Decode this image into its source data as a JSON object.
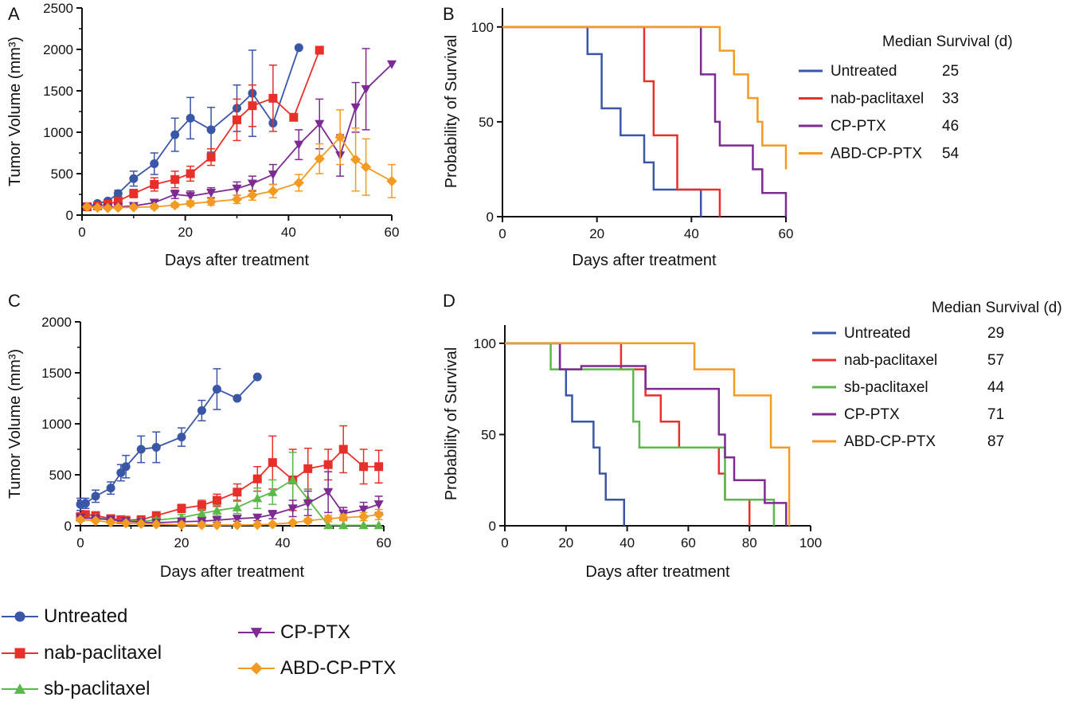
{
  "colors": {
    "untreated": "#3a56a7",
    "nab": "#e8302a",
    "sb": "#5bb94a",
    "cp": "#7d2a92",
    "abd": "#f39a23"
  },
  "legend": {
    "items": [
      {
        "key": "untreated",
        "label": "Untreated",
        "marker": "circle"
      },
      {
        "key": "nab",
        "label": "nab-paclitaxel",
        "marker": "square"
      },
      {
        "key": "sb",
        "label": "sb-paclitaxel",
        "marker": "triangle-up"
      },
      {
        "key": "cp",
        "label": "CP-PTX",
        "marker": "triangle-down"
      },
      {
        "key": "abd",
        "label": "ABD-CP-PTX",
        "marker": "diamond"
      }
    ]
  },
  "chart_data": [
    {
      "panel": "A",
      "type": "line",
      "xlabel": "Days after treatment",
      "ylabel": "Tumor Volume (mm³)",
      "xlim": [
        0,
        60
      ],
      "ylim": [
        0,
        2500
      ],
      "xticks": [
        0,
        20,
        40,
        60
      ],
      "yticks": [
        0,
        500,
        1000,
        1500,
        2000,
        2500
      ],
      "series": [
        {
          "key": "untreated",
          "name": "Untreated",
          "marker": "circle",
          "x": [
            1,
            3,
            5,
            7,
            10,
            14,
            18,
            21,
            25,
            30,
            33,
            37,
            42
          ],
          "y": [
            100,
            140,
            170,
            260,
            440,
            620,
            970,
            1170,
            1030,
            1290,
            1470,
            1110,
            2020
          ],
          "err": [
            0,
            20,
            20,
            40,
            90,
            130,
            200,
            250,
            270,
            280,
            520,
            0,
            0
          ]
        },
        {
          "key": "nab",
          "name": "nab-paclitaxel",
          "marker": "square",
          "x": [
            1,
            3,
            5,
            7,
            10,
            14,
            18,
            21,
            25,
            30,
            33,
            37,
            41,
            46
          ],
          "y": [
            100,
            110,
            130,
            170,
            260,
            370,
            430,
            500,
            700,
            1150,
            1320,
            1410,
            1180,
            1990
          ],
          "err": [
            0,
            15,
            20,
            30,
            50,
            80,
            100,
            90,
            100,
            250,
            250,
            400,
            0,
            0
          ]
        },
        {
          "key": "cp",
          "name": "CP-PTX",
          "marker": "triangle-down",
          "x": [
            1,
            3,
            5,
            7,
            10,
            14,
            18,
            21,
            25,
            30,
            33,
            37,
            42,
            46,
            50,
            53,
            55,
            60
          ],
          "y": [
            100,
            90,
            95,
            100,
            110,
            150,
            250,
            230,
            270,
            320,
            380,
            490,
            850,
            1100,
            720,
            1300,
            1520,
            1820
          ],
          "err": [
            0,
            10,
            10,
            15,
            20,
            30,
            50,
            60,
            60,
            80,
            90,
            120,
            180,
            300,
            250,
            300,
            490,
            0
          ]
        },
        {
          "key": "abd",
          "name": "ABD-CP-PTX",
          "marker": "diamond",
          "x": [
            1,
            3,
            5,
            7,
            10,
            14,
            18,
            21,
            25,
            30,
            33,
            37,
            42,
            46,
            50,
            53,
            55,
            60
          ],
          "y": [
            100,
            90,
            85,
            90,
            95,
            100,
            120,
            140,
            160,
            190,
            240,
            290,
            390,
            680,
            940,
            670,
            580,
            410
          ],
          "err": [
            0,
            10,
            10,
            10,
            15,
            20,
            25,
            30,
            40,
            50,
            60,
            80,
            100,
            180,
            330,
            380,
            340,
            200
          ]
        }
      ]
    },
    {
      "panel": "B",
      "type": "line",
      "xlabel": "Days after treatment",
      "ylabel": "Probability of Survival",
      "xlim": [
        0,
        60
      ],
      "ylim": [
        0,
        100
      ],
      "xticks": [
        0,
        20,
        40,
        60
      ],
      "yticks": [
        0,
        50,
        100
      ],
      "legend_title": "Median Survival (d)",
      "series": [
        {
          "key": "untreated",
          "name": "Untreated",
          "median": "25",
          "x": [
            0,
            18,
            21,
            25,
            30,
            32,
            42
          ],
          "y": [
            100,
            85.7,
            57.1,
            42.9,
            28.6,
            14.3,
            0
          ]
        },
        {
          "key": "nab",
          "name": "nab-paclitaxel",
          "median": "33",
          "x": [
            0,
            30,
            32,
            34,
            37,
            46
          ],
          "y": [
            100,
            71.4,
            42.9,
            42.9,
            14.3,
            0
          ]
        },
        {
          "key": "cp",
          "name": "CP-PTX",
          "median": "46",
          "x": [
            0,
            42,
            45,
            46,
            53,
            55,
            60
          ],
          "y": [
            100,
            75,
            50,
            37.5,
            25,
            12.5,
            0
          ]
        },
        {
          "key": "abd",
          "name": "ABD-CP-PTX",
          "median": "54",
          "x": [
            0,
            46,
            49,
            52,
            54,
            55,
            60
          ],
          "y": [
            100,
            87.5,
            75,
            62.5,
            50,
            37.5,
            25
          ]
        }
      ]
    },
    {
      "panel": "C",
      "type": "line",
      "xlabel": "Days after treatment",
      "ylabel": "Tumor Volume (mm³)",
      "xlim": [
        0,
        60
      ],
      "ylim": [
        0,
        2000
      ],
      "xticks": [
        0,
        20,
        40,
        60
      ],
      "yticks": [
        0,
        500,
        1000,
        1500,
        2000
      ],
      "series": [
        {
          "key": "untreated",
          "name": "Untreated",
          "marker": "circle",
          "x": [
            0,
            1,
            3,
            6,
            8,
            9,
            12,
            15,
            20,
            24,
            27,
            31,
            35
          ],
          "y": [
            210,
            220,
            290,
            370,
            520,
            580,
            750,
            770,
            870,
            1130,
            1340,
            1250,
            1460
          ],
          "err": [
            60,
            50,
            60,
            60,
            80,
            110,
            130,
            150,
            90,
            100,
            200,
            0,
            0
          ]
        },
        {
          "key": "nab",
          "name": "nab-paclitaxel",
          "marker": "square",
          "x": [
            0,
            1,
            3,
            6,
            8,
            9,
            12,
            15,
            20,
            24,
            27,
            31,
            35,
            38,
            42,
            45,
            49,
            52,
            56,
            59
          ],
          "y": [
            90,
            110,
            100,
            70,
            60,
            55,
            60,
            100,
            170,
            200,
            250,
            330,
            460,
            620,
            450,
            560,
            600,
            750,
            580,
            580
          ],
          "err": [
            30,
            30,
            30,
            20,
            20,
            20,
            20,
            30,
            40,
            50,
            60,
            80,
            120,
            260,
            300,
            200,
            150,
            230,
            170,
            160
          ]
        },
        {
          "key": "sb",
          "name": "sb-paclitaxel",
          "marker": "triangle-up",
          "x": [
            0,
            3,
            6,
            9,
            12,
            15,
            20,
            24,
            27,
            31,
            35,
            38,
            42,
            45,
            49,
            52,
            56,
            59
          ],
          "y": [
            80,
            80,
            60,
            50,
            45,
            55,
            80,
            120,
            150,
            180,
            270,
            330,
            450,
            260,
            5,
            5,
            5,
            5
          ],
          "err": [
            20,
            20,
            15,
            15,
            15,
            20,
            30,
            40,
            50,
            60,
            100,
            120,
            270,
            100,
            0,
            0,
            0,
            0
          ]
        },
        {
          "key": "cp",
          "name": "CP-PTX",
          "marker": "triangle-down",
          "x": [
            0,
            3,
            6,
            9,
            12,
            15,
            20,
            24,
            27,
            31,
            35,
            38,
            42,
            45,
            49,
            52,
            56,
            59
          ],
          "y": [
            80,
            70,
            60,
            45,
            35,
            30,
            40,
            45,
            55,
            70,
            80,
            110,
            170,
            220,
            330,
            120,
            160,
            210
          ],
          "err": [
            20,
            15,
            15,
            10,
            10,
            10,
            15,
            15,
            20,
            25,
            30,
            40,
            80,
            120,
            200,
            60,
            70,
            80
          ]
        },
        {
          "key": "abd",
          "name": "ABD-CP-PTX",
          "marker": "diamond",
          "x": [
            0,
            3,
            6,
            9,
            12,
            15,
            20,
            24,
            27,
            31,
            35,
            38,
            42,
            45,
            49,
            52,
            56,
            59
          ],
          "y": [
            60,
            50,
            35,
            25,
            20,
            15,
            10,
            8,
            8,
            8,
            10,
            15,
            30,
            50,
            70,
            80,
            90,
            110
          ],
          "err": [
            10,
            10,
            8,
            5,
            5,
            5,
            3,
            3,
            3,
            3,
            5,
            5,
            10,
            20,
            30,
            30,
            40,
            50
          ]
        }
      ]
    },
    {
      "panel": "D",
      "type": "line",
      "xlabel": "Days after treatment",
      "ylabel": "Probability of Survival",
      "xlim": [
        0,
        100
      ],
      "ylim": [
        0,
        100
      ],
      "xticks": [
        0,
        20,
        40,
        60,
        80,
        100
      ],
      "yticks": [
        0,
        50,
        100
      ],
      "legend_title": "Median Survival (d)",
      "series": [
        {
          "key": "untreated",
          "name": "Untreated",
          "median": "29",
          "x": [
            0,
            18,
            20,
            22,
            29,
            31,
            33,
            39
          ],
          "y": [
            100,
            85.7,
            71.4,
            57.1,
            42.9,
            28.6,
            14.3,
            0
          ]
        },
        {
          "key": "nab",
          "name": "nab-paclitaxel",
          "median": "57",
          "x": [
            0,
            38,
            46,
            51,
            57,
            70,
            72,
            80
          ],
          "y": [
            100,
            85.7,
            71.4,
            57.1,
            42.9,
            28.6,
            14.3,
            0
          ]
        },
        {
          "key": "sb",
          "name": "sb-paclitaxel",
          "median": "44",
          "x": [
            0,
            15,
            42,
            44,
            72,
            88
          ],
          "y": [
            100,
            85.7,
            57.1,
            42.9,
            14.3,
            0
          ]
        },
        {
          "key": "cp",
          "name": "CP-PTX",
          "median": "71",
          "x": [
            0,
            18,
            25,
            46,
            50,
            70,
            72,
            75,
            85,
            92
          ],
          "y": [
            100,
            85.7,
            87.5,
            75,
            75,
            50,
            37.5,
            25,
            12.5,
            0
          ]
        },
        {
          "key": "abd",
          "name": "ABD-CP-PTX",
          "median": "87",
          "x": [
            0,
            62,
            75,
            87,
            93
          ],
          "y": [
            100,
            85.7,
            71.4,
            42.9,
            0
          ]
        }
      ]
    }
  ],
  "panel_labels": [
    "A",
    "B",
    "C",
    "D"
  ]
}
